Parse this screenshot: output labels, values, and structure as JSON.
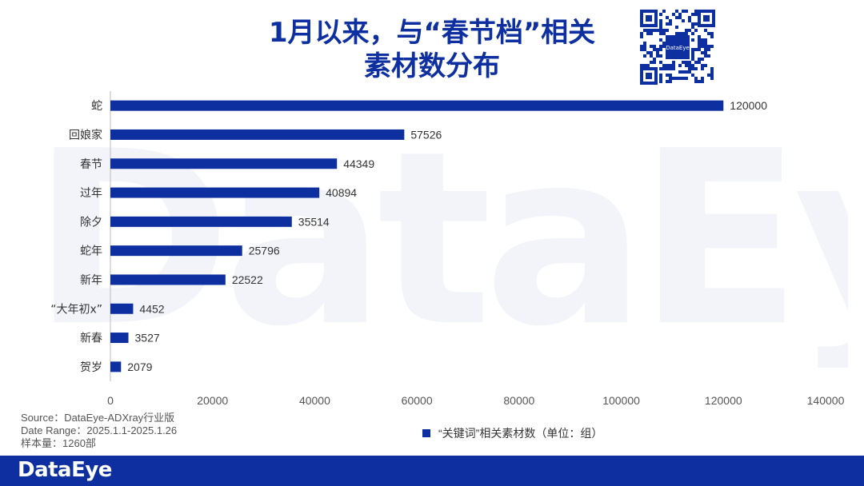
{
  "title_line1": "1月以来，与“春节档”相关",
  "title_line2": "素材数分布",
  "watermark": "DataEye",
  "qr_logo": "DataEye",
  "chart_data": {
    "type": "bar",
    "orientation": "horizontal",
    "categories": [
      "蛇",
      "回娘家",
      "春节",
      "过年",
      "除夕",
      "蛇年",
      "新年",
      "“大年初x”",
      "新春",
      "贺岁"
    ],
    "values": [
      120000,
      57526,
      44349,
      40894,
      35514,
      25796,
      22522,
      4452,
      3527,
      2079
    ],
    "value_labels": [
      "120000",
      "57526",
      "44349",
      "40894",
      "35514",
      "25796",
      "22522",
      "4452",
      "3527",
      "2079"
    ],
    "x_ticks": [
      "0",
      "20000",
      "40000",
      "60000",
      "80000",
      "100000",
      "120000",
      "140000"
    ],
    "xlim": [
      0,
      140000
    ],
    "series_name": "“关键词”相关素材数（单位：组）",
    "color": "#0d2fa0",
    "grid": false,
    "legend_position": "bottom"
  },
  "source": {
    "line1": "Source：DataEye-ADXray行业版",
    "line2": "Date Range：2025.1.1-2025.1.26",
    "line3": "样本量：1260部"
  },
  "footer_logo": "DataEye"
}
